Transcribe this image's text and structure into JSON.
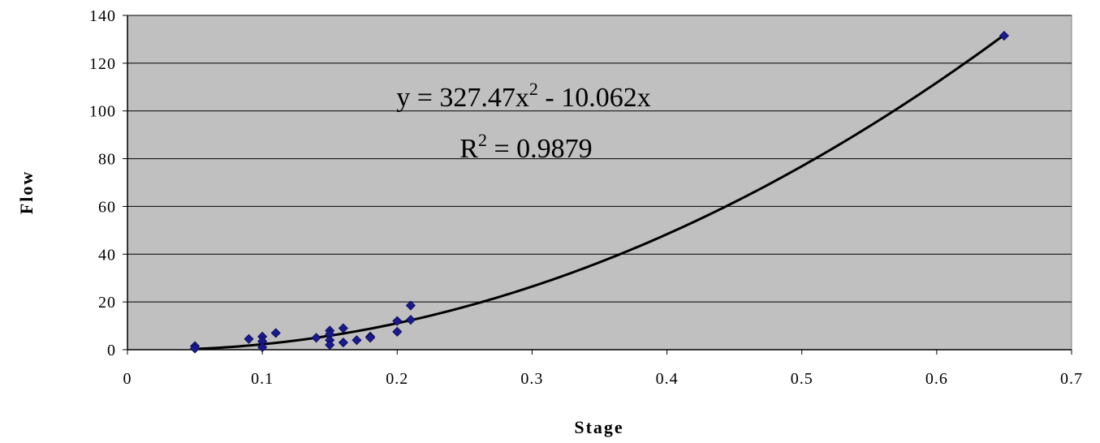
{
  "chart_data": {
    "type": "scatter",
    "xlabel": "Stage",
    "ylabel": "Flow",
    "xlim": [
      0,
      0.7
    ],
    "ylim": [
      0,
      140
    ],
    "x_ticks": [
      "0",
      "0.1",
      "0.2",
      "0.3",
      "0.4",
      "0.5",
      "0.6",
      "0.7"
    ],
    "y_ticks": [
      "0",
      "20",
      "40",
      "60",
      "80",
      "100",
      "120",
      "140"
    ],
    "grid": "horizontal",
    "plot_background": "#c0c0c0",
    "series": [
      {
        "marker": "diamond",
        "color": "#1a1a8c",
        "points": [
          {
            "x": 0.05,
            "y": 1.5
          },
          {
            "x": 0.05,
            "y": 0.5
          },
          {
            "x": 0.09,
            "y": 4.5
          },
          {
            "x": 0.1,
            "y": 5.5
          },
          {
            "x": 0.1,
            "y": 3.5
          },
          {
            "x": 0.1,
            "y": 1.0
          },
          {
            "x": 0.11,
            "y": 7.0
          },
          {
            "x": 0.14,
            "y": 5.0
          },
          {
            "x": 0.15,
            "y": 8.0
          },
          {
            "x": 0.15,
            "y": 6.5
          },
          {
            "x": 0.15,
            "y": 4.0
          },
          {
            "x": 0.15,
            "y": 2.0
          },
          {
            "x": 0.16,
            "y": 9.0
          },
          {
            "x": 0.16,
            "y": 3.0
          },
          {
            "x": 0.17,
            "y": 4.0
          },
          {
            "x": 0.18,
            "y": 5.5
          },
          {
            "x": 0.18,
            "y": 5.0
          },
          {
            "x": 0.2,
            "y": 12.0
          },
          {
            "x": 0.2,
            "y": 7.5
          },
          {
            "x": 0.21,
            "y": 18.5
          },
          {
            "x": 0.21,
            "y": 12.5
          },
          {
            "x": 0.65,
            "y": 131.5
          }
        ]
      }
    ],
    "trendline": {
      "type": "polynomial",
      "coefficients": {
        "a": 327.47,
        "b": -10.062,
        "c": 0
      },
      "x_range": [
        0.05,
        0.65
      ],
      "color": "#000000"
    },
    "annotation": {
      "equation_prefix": "y = 327.47x",
      "equation_exp": "2",
      "equation_suffix": " - 10.062x",
      "r2_prefix": "R",
      "r2_exp": "2",
      "r2_suffix": " = 0.9879"
    }
  }
}
